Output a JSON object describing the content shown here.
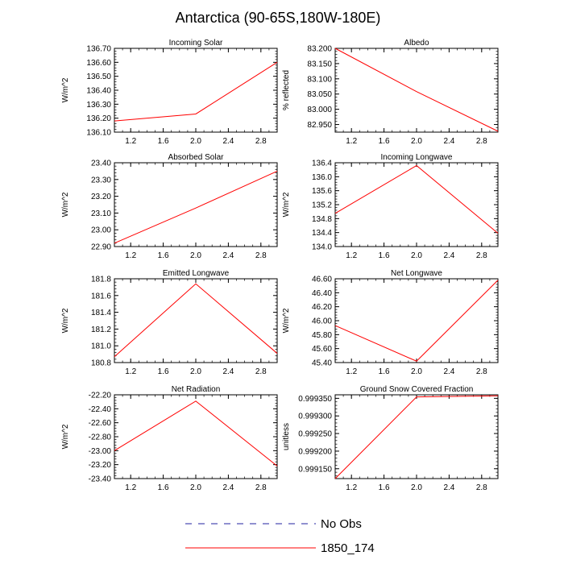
{
  "title": "Antarctica (90-65S,180W-180E)",
  "legend": {
    "items": [
      {
        "label": "No Obs",
        "color": "#2020a0",
        "style": "dashed"
      },
      {
        "label": "1850_174",
        "color": "#ff0000",
        "style": "solid"
      }
    ]
  },
  "chart_data": [
    {
      "type": "line",
      "title": "Incoming Solar",
      "ylabel": "W/m^2",
      "xlim": [
        1,
        3
      ],
      "ylim": [
        136.1,
        136.7
      ],
      "xticks": [
        1.2,
        1.6,
        2.0,
        2.4,
        2.8
      ],
      "xtick_labels": [
        "1.2",
        "1.6",
        "2.0",
        "2.4",
        "2.8"
      ],
      "yticks": [
        136.1,
        136.2,
        136.3,
        136.4,
        136.5,
        136.6,
        136.7
      ],
      "ytick_labels": [
        "136.10",
        "136.20",
        "136.30",
        "136.40",
        "136.50",
        "136.60",
        "136.70"
      ],
      "series": [
        {
          "name": "1850_174",
          "x": [
            1,
            2,
            3
          ],
          "y": [
            136.18,
            136.23,
            136.6
          ]
        }
      ]
    },
    {
      "type": "line",
      "title": "Albedo",
      "ylabel": "% reflected",
      "xlim": [
        1,
        3
      ],
      "ylim": [
        82.925,
        83.2
      ],
      "xticks": [
        1.2,
        1.6,
        2.0,
        2.4,
        2.8
      ],
      "xtick_labels": [
        "1.2",
        "1.6",
        "2.0",
        "2.4",
        "2.8"
      ],
      "yticks": [
        82.95,
        83.0,
        83.05,
        83.1,
        83.15,
        83.2
      ],
      "ytick_labels": [
        "82.950",
        "83.000",
        "83.050",
        "83.100",
        "83.150",
        "83.200"
      ],
      "series": [
        {
          "name": "1850_174",
          "x": [
            1,
            2,
            3
          ],
          "y": [
            83.2,
            83.058,
            82.928
          ]
        }
      ]
    },
    {
      "type": "line",
      "title": "Absorbed Solar",
      "ylabel": "W/m^2",
      "xlim": [
        1,
        3
      ],
      "ylim": [
        22.9,
        23.4
      ],
      "xticks": [
        1.2,
        1.6,
        2.0,
        2.4,
        2.8
      ],
      "xtick_labels": [
        "1.2",
        "1.6",
        "2.0",
        "2.4",
        "2.8"
      ],
      "yticks": [
        22.9,
        23.0,
        23.1,
        23.2,
        23.3,
        23.4
      ],
      "ytick_labels": [
        "22.90",
        "23.00",
        "23.10",
        "23.20",
        "23.30",
        "23.40"
      ],
      "series": [
        {
          "name": "1850_174",
          "x": [
            1,
            2,
            3
          ],
          "y": [
            22.92,
            23.13,
            23.35
          ]
        }
      ]
    },
    {
      "type": "line",
      "title": "Incoming Longwave",
      "ylabel": "W/m^2",
      "xlim": [
        1,
        3
      ],
      "ylim": [
        134.0,
        136.4
      ],
      "xticks": [
        1.2,
        1.6,
        2.0,
        2.4,
        2.8
      ],
      "xtick_labels": [
        "1.2",
        "1.6",
        "2.0",
        "2.4",
        "2.8"
      ],
      "yticks": [
        134.0,
        134.4,
        134.8,
        135.2,
        135.6,
        136.0,
        136.4
      ],
      "ytick_labels": [
        "134.0",
        "134.4",
        "134.8",
        "135.2",
        "135.6",
        "136.0",
        "136.4"
      ],
      "series": [
        {
          "name": "1850_174",
          "x": [
            1,
            2,
            3
          ],
          "y": [
            134.95,
            136.32,
            134.38
          ]
        }
      ]
    },
    {
      "type": "line",
      "title": "Emitted Longwave",
      "ylabel": "W/m^2",
      "xlim": [
        1,
        3
      ],
      "ylim": [
        180.8,
        181.8
      ],
      "xticks": [
        1.2,
        1.6,
        2.0,
        2.4,
        2.8
      ],
      "xtick_labels": [
        "1.2",
        "1.6",
        "2.0",
        "2.4",
        "2.8"
      ],
      "yticks": [
        180.8,
        181.0,
        181.2,
        181.4,
        181.6,
        181.8
      ],
      "ytick_labels": [
        "180.8",
        "181.0",
        "181.2",
        "181.4",
        "181.6",
        "181.8"
      ],
      "series": [
        {
          "name": "1850_174",
          "x": [
            1,
            2,
            3
          ],
          "y": [
            180.87,
            181.74,
            180.91
          ]
        }
      ]
    },
    {
      "type": "line",
      "title": "Net Longwave",
      "ylabel": "W/m^2",
      "xlim": [
        1,
        3
      ],
      "ylim": [
        45.4,
        46.6
      ],
      "xticks": [
        1.2,
        1.6,
        2.0,
        2.4,
        2.8
      ],
      "xtick_labels": [
        "1.2",
        "1.6",
        "2.0",
        "2.4",
        "2.8"
      ],
      "yticks": [
        45.4,
        45.6,
        45.8,
        46.0,
        46.2,
        46.4,
        46.6
      ],
      "ytick_labels": [
        "45.40",
        "45.60",
        "45.80",
        "46.00",
        "46.20",
        "46.40",
        "46.60"
      ],
      "series": [
        {
          "name": "1850_174",
          "x": [
            1,
            2,
            3
          ],
          "y": [
            45.93,
            45.42,
            46.58
          ]
        }
      ]
    },
    {
      "type": "line",
      "title": "Net Radiation",
      "ylabel": "W/m^2",
      "xlim": [
        1,
        3
      ],
      "ylim": [
        -23.4,
        -22.2
      ],
      "xticks": [
        1.2,
        1.6,
        2.0,
        2.4,
        2.8
      ],
      "xtick_labels": [
        "1.2",
        "1.6",
        "2.0",
        "2.4",
        "2.8"
      ],
      "yticks": [
        -23.4,
        -23.2,
        -23.0,
        -22.8,
        -22.6,
        -22.4,
        -22.2
      ],
      "ytick_labels": [
        "-23.40",
        "-23.20",
        "-23.00",
        "-22.80",
        "-22.60",
        "-22.40",
        "-22.20"
      ],
      "series": [
        {
          "name": "1850_174",
          "x": [
            1,
            2,
            3
          ],
          "y": [
            -23.0,
            -22.29,
            -23.22
          ]
        }
      ]
    },
    {
      "type": "line",
      "title": "Ground Snow Covered Fraction",
      "ylabel": "unitless",
      "xlim": [
        1,
        3
      ],
      "ylim": [
        0.999122,
        0.99936
      ],
      "xticks": [
        1.2,
        1.6,
        2.0,
        2.4,
        2.8
      ],
      "xtick_labels": [
        "1.2",
        "1.6",
        "2.0",
        "2.4",
        "2.8"
      ],
      "yticks": [
        0.99915,
        0.9992,
        0.99925,
        0.9993,
        0.99935
      ],
      "ytick_labels": [
        "0.999150",
        "0.999200",
        "0.999250",
        "0.999300",
        "0.999350"
      ],
      "series": [
        {
          "name": "1850_174",
          "x": [
            1,
            2,
            3
          ],
          "y": [
            0.999122,
            0.999354,
            0.999357
          ]
        }
      ]
    }
  ]
}
